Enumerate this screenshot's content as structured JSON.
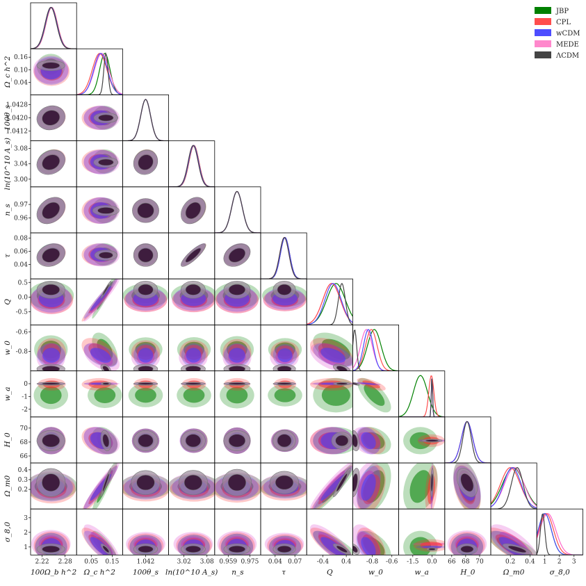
{
  "chart_data": {
    "type": "corner",
    "legend_position": "top-right",
    "series": [
      {
        "name": "JBP",
        "color": "#008000"
      },
      {
        "name": "CPL",
        "color": "#ff4d4d"
      },
      {
        "name": "wCDM",
        "color": "#4d4dff"
      },
      {
        "name": "MEDE",
        "color": "#ff88cc"
      },
      {
        "name": "ΛCDM",
        "color": "#444444"
      }
    ],
    "parameters": [
      {
        "label": "100Ω_b h^2",
        "range": [
          2.19,
          2.31
        ],
        "ticks": [
          "2.22",
          "2.28"
        ],
        "ticks_at": [
          2.22,
          2.28
        ],
        "show_y_label": false
      },
      {
        "label": "Ω_c h^2",
        "range": [
          -0.02,
          0.2
        ],
        "ticks": [
          "0.05",
          "0.15"
        ],
        "ticks_at": [
          0.05,
          0.15
        ],
        "yticks": [
          "0.16",
          "0.10",
          "0.04"
        ],
        "yticks_at": [
          0.16,
          0.1,
          0.04
        ]
      },
      {
        "label": "100θ_s",
        "range": [
          1.0406,
          1.0434
        ],
        "ticks": [
          "1.042"
        ],
        "ticks_at": [
          1.042
        ],
        "yticks": [
          "1.0428",
          "1.0420",
          "1.0412"
        ],
        "yticks_at": [
          1.0428,
          1.042,
          1.0412
        ]
      },
      {
        "label": "ln(10^10 A_s)",
        "range": [
          2.98,
          3.1
        ],
        "ticks": [
          "3.02",
          "3.08"
        ],
        "ticks_at": [
          3.02,
          3.08
        ],
        "yticks": [
          "3.08",
          "3.04",
          "3.00"
        ],
        "yticks_at": [
          3.08,
          3.04,
          3.0
        ]
      },
      {
        "label": "n_s",
        "range": [
          0.949,
          0.983
        ],
        "ticks": [
          "0.959",
          "0.975"
        ],
        "ticks_at": [
          0.959,
          0.975
        ],
        "yticks": [
          "0.97",
          "0.96"
        ],
        "yticks_at": [
          0.97,
          0.96
        ]
      },
      {
        "label": "τ",
        "range": [
          0.018,
          0.088
        ],
        "ticks": [
          "0.04",
          "0.07"
        ],
        "ticks_at": [
          0.04,
          0.07
        ],
        "yticks": [
          "0.08",
          "0.06",
          "0.04"
        ],
        "yticks_at": [
          0.08,
          0.06,
          0.04
        ]
      },
      {
        "label": "Q",
        "range": [
          -0.95,
          0.62
        ],
        "ticks": [
          "-0.4",
          "0.4"
        ],
        "ticks_at": [
          -0.4,
          0.4
        ],
        "yticks": [
          "0.5",
          "0.0",
          "-0.5"
        ],
        "yticks_at": [
          0.5,
          0.0,
          -0.5
        ]
      },
      {
        "label": "w_0",
        "range": [
          -1.0,
          -0.53
        ],
        "ticks": [
          "-0.8",
          "-0.6"
        ],
        "ticks_at": [
          -0.8,
          -0.6
        ],
        "yticks": [
          "-0.6",
          "-0.8"
        ],
        "yticks_at": [
          -0.6,
          -0.8
        ]
      },
      {
        "label": "w_a",
        "range": [
          -2.6,
          1.0
        ],
        "ticks": [
          "-1.5",
          "0.0"
        ],
        "ticks_at": [
          -1.5,
          0.0
        ],
        "yticks": [
          "0",
          "-1",
          "-2"
        ],
        "yticks_at": [
          0,
          -1,
          -2
        ]
      },
      {
        "label": "H_0",
        "range": [
          65.0,
          71.6
        ],
        "ticks": [
          "66",
          "68",
          "70"
        ],
        "ticks_at": [
          66,
          68,
          70
        ],
        "yticks": [
          "70",
          "68",
          "66"
        ],
        "yticks_at": [
          70,
          68,
          66
        ]
      },
      {
        "label": "Ω_m0",
        "range": [
          0.0,
          0.47
        ],
        "ticks": [
          "0.2",
          "0.4"
        ],
        "ticks_at": [
          0.2,
          0.4
        ],
        "yticks": [
          "0.4",
          "0.3",
          "0.2"
        ],
        "yticks_at": [
          0.4,
          0.3,
          0.2
        ]
      },
      {
        "label": "σ_8,0",
        "range": [
          0.45,
          3.6
        ],
        "ticks": [
          "1",
          "2",
          "3"
        ],
        "ticks_at": [
          1,
          2,
          3
        ],
        "yticks": [
          "3",
          "2",
          "1"
        ],
        "yticks_at": [
          3,
          2,
          1
        ]
      }
    ],
    "estimates": {
      "JBP": {
        "mean": [
          2.243,
          0.115,
          1.042,
          3.046,
          0.9655,
          0.055,
          0.05,
          -0.78,
          -0.9,
          68.2,
          0.23,
          1.0
        ],
        "sigma": [
          0.015,
          0.025,
          0.0003,
          0.013,
          0.004,
          0.007,
          0.32,
          0.07,
          0.55,
          0.8,
          0.11,
          0.45
        ]
      },
      "CPL": {
        "mean": [
          2.245,
          0.09,
          1.042,
          3.046,
          0.9655,
          0.055,
          -0.1,
          -0.81,
          -0.05,
          68.2,
          0.2,
          1.1
        ],
        "sigma": [
          0.015,
          0.035,
          0.0003,
          0.013,
          0.004,
          0.007,
          0.3,
          0.06,
          0.2,
          0.8,
          0.1,
          0.5
        ]
      },
      "wCDM": {
        "mean": [
          2.244,
          0.095,
          1.042,
          3.045,
          0.9655,
          0.055,
          -0.05,
          -0.84,
          0.0,
          68.2,
          0.22,
          1.0
        ],
        "sigma": [
          0.015,
          0.033,
          0.0003,
          0.013,
          0.004,
          0.007,
          0.28,
          0.05,
          0.05,
          0.8,
          0.09,
          0.45
        ]
      },
      "MEDE": {
        "mean": [
          2.243,
          0.1,
          1.042,
          3.044,
          0.9655,
          0.054,
          -0.1,
          -0.86,
          0.0,
          68.2,
          0.24,
          1.2
        ],
        "sigma": [
          0.015,
          0.035,
          0.0003,
          0.013,
          0.004,
          0.007,
          0.3,
          0.06,
          0.05,
          0.8,
          0.1,
          0.55
        ]
      },
      "ΛCDM": {
        "mean": [
          2.243,
          0.12,
          1.042,
          3.044,
          0.9655,
          0.054,
          0.25,
          -0.98,
          0.0,
          68.2,
          0.27,
          0.85
        ],
        "sigma": [
          0.015,
          0.01,
          0.0003,
          0.013,
          0.004,
          0.007,
          0.12,
          0.02,
          0.05,
          0.6,
          0.06,
          0.15
        ]
      }
    },
    "notes": "Triangle plot: 1D marginalized posteriors on the diagonal, 68% and 95% credible contours off-diagonal."
  }
}
